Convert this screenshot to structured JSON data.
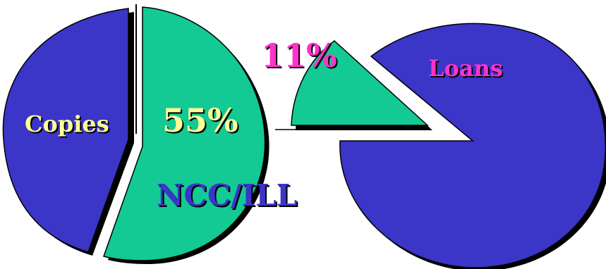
{
  "chart_data": [
    {
      "type": "pie",
      "slices": [
        {
          "label": "Copies",
          "value": 45,
          "color": "#3b35c8"
        },
        {
          "label": "NCC/ILL",
          "value": 55,
          "value_label": "55%",
          "color": "#13c994"
        }
      ]
    },
    {
      "type": "pie",
      "slices": [
        {
          "label": "",
          "value": 11,
          "value_label": "11%",
          "color": "#13c994"
        },
        {
          "label": "Loans",
          "value": 89,
          "color": "#3b35c8"
        }
      ]
    }
  ],
  "colors": {
    "blue": "#3b35c8",
    "green": "#13c994",
    "label_yellow": "#ffff99",
    "label_pink": "#ff33cc",
    "label_blue": "#3b35c8"
  }
}
